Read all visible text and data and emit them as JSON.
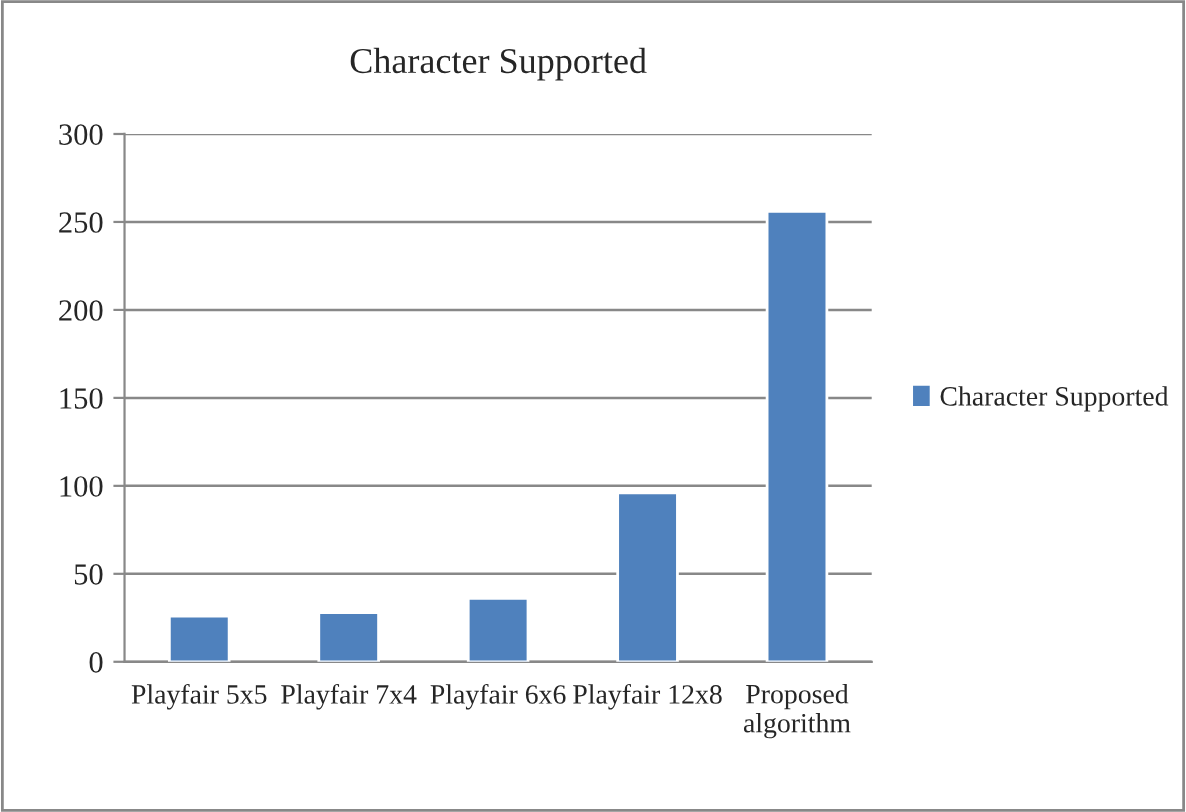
{
  "chart_data": {
    "type": "bar",
    "title": "Character Supported",
    "categories": [
      "Playfair 5x5",
      "Playfair 7x4",
      "Playfair 6x6",
      "Playfair 12x8",
      "Proposed\nalgorithm"
    ],
    "series": [
      {
        "name": "Character Supported",
        "color": "#4f81bd",
        "values": [
          26,
          28,
          36,
          96,
          256
        ]
      }
    ],
    "ylim": [
      0,
      300
    ],
    "yticks": [
      0,
      50,
      100,
      150,
      200,
      250,
      300
    ],
    "grid": "y",
    "legend": "right"
  }
}
